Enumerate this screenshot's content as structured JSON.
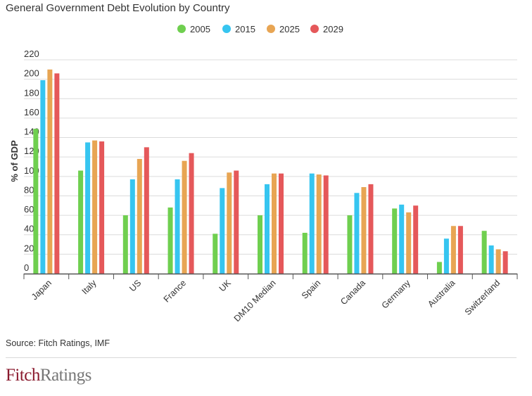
{
  "chart_data": {
    "type": "bar",
    "title": "General Government Debt Evolution by Country",
    "ylabel": "% of GDP",
    "xlabel": "",
    "ylim": [
      0,
      220
    ],
    "yticks": [
      0,
      20,
      40,
      60,
      80,
      100,
      120,
      140,
      160,
      180,
      200,
      220
    ],
    "grid": true,
    "legend_position": "top-center",
    "categories": [
      "Japan",
      "Italy",
      "US",
      "France",
      "UK",
      "DM10 Median",
      "Spain",
      "Canada",
      "Germany",
      "Australia",
      "Switzerland"
    ],
    "series": [
      {
        "name": "2005",
        "color": "#6fcf4f",
        "values": [
          149,
          106,
          60,
          68,
          41,
          60,
          42,
          60,
          67,
          12,
          44
        ]
      },
      {
        "name": "2015",
        "color": "#36c5f0",
        "values": [
          199,
          135,
          97,
          97,
          88,
          92,
          103,
          83,
          71,
          36,
          29
        ]
      },
      {
        "name": "2025",
        "color": "#e8a553",
        "values": [
          210,
          137,
          118,
          116,
          104,
          103,
          102,
          89,
          63,
          49,
          25
        ]
      },
      {
        "name": "2029",
        "color": "#e5585a",
        "values": [
          206,
          136,
          130,
          124,
          106,
          103,
          101,
          92,
          70,
          49,
          23
        ]
      }
    ]
  },
  "footer": {
    "source": "Source: Fitch Ratings, IMF",
    "brand_part1": "Fitch",
    "brand_part2": "Ratings"
  },
  "colors": {
    "brand": "#8a1a2e",
    "grid": "#dcdcdc",
    "axis": "#555555"
  }
}
